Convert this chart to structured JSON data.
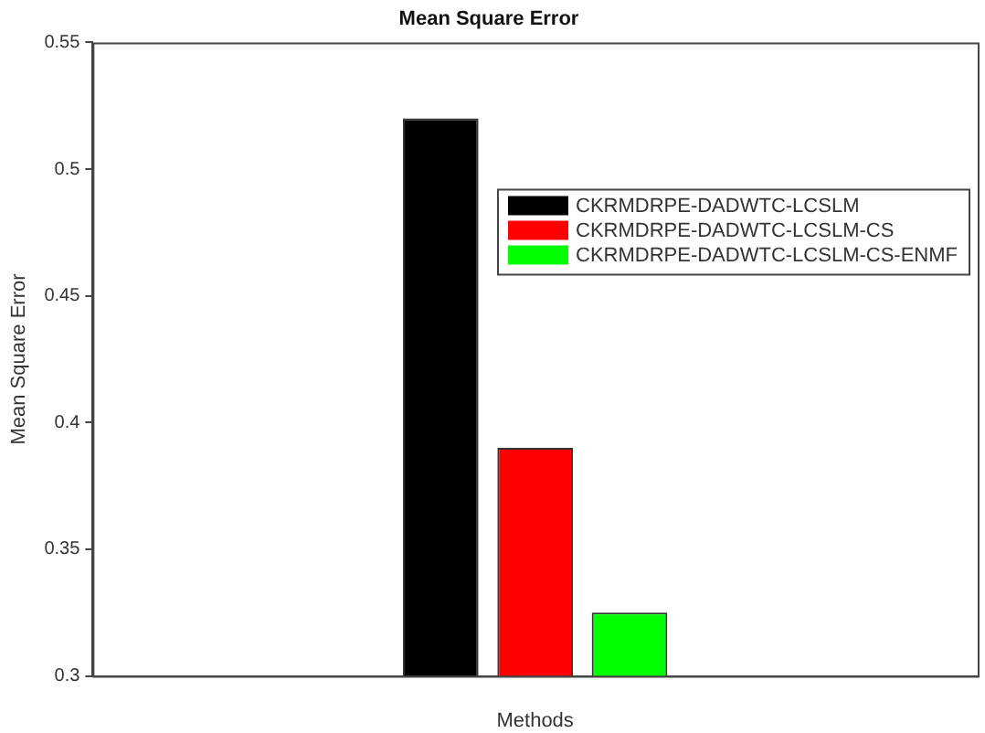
{
  "chart_data": {
    "type": "bar",
    "title": "Mean Square Error",
    "xlabel": "Methods",
    "ylabel": "Mean Square Error",
    "categories": [
      null
    ],
    "series": [
      {
        "name": "CKRMDRPE-DADWTC-LCSLM",
        "color": "#000000",
        "values": [
          0.52
        ]
      },
      {
        "name": "CKRMDRPE-DADWTC-LCSLM-CS",
        "color": "#ff0000",
        "values": [
          0.39
        ]
      },
      {
        "name": "CKRMDRPE-DADWTC-LCSLM-CS-ENMF",
        "color": "#00ff00",
        "values": [
          0.325
        ]
      }
    ],
    "ylim": [
      0.3,
      0.55
    ],
    "yticks": [
      0.3,
      0.35,
      0.4,
      0.45,
      0.5,
      0.55
    ],
    "grid": false,
    "legend": "top right"
  }
}
